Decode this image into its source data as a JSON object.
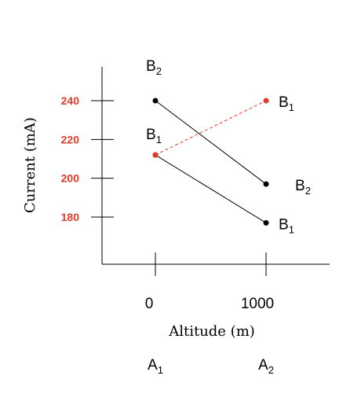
{
  "chart_data": {
    "type": "line",
    "xlabel": "Altitude (m)",
    "ylabel": "Current (mA)",
    "x": [
      0,
      1000
    ],
    "y_ticks": [
      180,
      200,
      220,
      240
    ],
    "x_ticks": [
      0,
      1000
    ],
    "x_levels": [
      {
        "base": "A",
        "sub": "1"
      },
      {
        "base": "A",
        "sub": "2"
      }
    ],
    "series": [
      {
        "values": [
          240,
          197
        ],
        "color": "#000000",
        "dashed": false
      },
      {
        "values": [
          212,
          177
        ],
        "color": "#000000",
        "dashed": false
      },
      {
        "values": [
          212,
          240
        ],
        "color": "#e03a2a",
        "dashed": true
      }
    ],
    "point_labels": [
      {
        "base": "B",
        "sub": "2",
        "x": 0,
        "y": 240,
        "pos": "above"
      },
      {
        "base": "B",
        "sub": "1",
        "x": 0,
        "y": 212,
        "pos": "above"
      },
      {
        "base": "B",
        "sub": "1",
        "x": 1000,
        "y": 240,
        "pos": "right"
      },
      {
        "base": "B",
        "sub": "2",
        "x": 1000,
        "y": 197,
        "pos": "right"
      },
      {
        "base": "B",
        "sub": "1",
        "x": 1000,
        "y": 177,
        "pos": "right"
      }
    ],
    "tick_color": "#e03a2a",
    "grid": false
  }
}
